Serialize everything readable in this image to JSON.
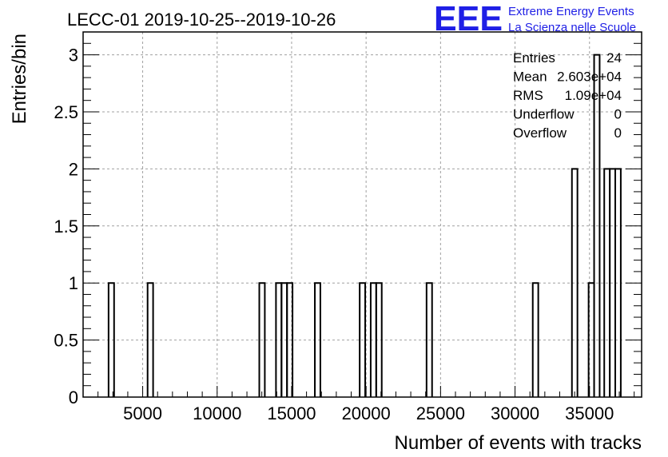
{
  "chart_data": {
    "type": "bar",
    "title": "LECC-01 2019-10-25--2019-10-26",
    "xlabel": "Number of events with tracks",
    "ylabel": "Entries/bin",
    "xlim": [
      1000,
      38500
    ],
    "ylim": [
      0,
      3.2
    ],
    "grid": true,
    "x_ticks": [
      5000,
      10000,
      15000,
      20000,
      25000,
      30000,
      35000
    ],
    "x_tick_labels": [
      "5000",
      "10000",
      "15000",
      "20000",
      "25000",
      "30000",
      "35000"
    ],
    "y_ticks": [
      0,
      0.5,
      1,
      1.5,
      2,
      2.5,
      3
    ],
    "y_tick_labels": [
      "0",
      "0.5",
      "1",
      "1.5",
      "2",
      "2.5",
      "3"
    ],
    "bins": [
      {
        "lo": 2710,
        "hi": 3080,
        "value": 1
      },
      {
        "lo": 5330,
        "hi": 5700,
        "value": 1
      },
      {
        "lo": 12830,
        "hi": 13200,
        "value": 1
      },
      {
        "lo": 13950,
        "hi": 14320,
        "value": 1
      },
      {
        "lo": 14320,
        "hi": 14690,
        "value": 1
      },
      {
        "lo": 14690,
        "hi": 15060,
        "value": 1
      },
      {
        "lo": 16560,
        "hi": 16930,
        "value": 1
      },
      {
        "lo": 19570,
        "hi": 19940,
        "value": 1
      },
      {
        "lo": 20310,
        "hi": 20680,
        "value": 1
      },
      {
        "lo": 20680,
        "hi": 21050,
        "value": 1
      },
      {
        "lo": 24060,
        "hi": 24430,
        "value": 1
      },
      {
        "lo": 31190,
        "hi": 31560,
        "value": 1
      },
      {
        "lo": 33820,
        "hi": 34190,
        "value": 2
      },
      {
        "lo": 34940,
        "hi": 35310,
        "value": 1
      },
      {
        "lo": 35310,
        "hi": 35680,
        "value": 3
      },
      {
        "lo": 35990,
        "hi": 36360,
        "value": 2
      },
      {
        "lo": 36360,
        "hi": 36730,
        "value": 2
      },
      {
        "lo": 36730,
        "hi": 37100,
        "value": 2
      }
    ],
    "stats": {
      "position": "top-right",
      "rows": [
        {
          "label": "Entries",
          "value": "24"
        },
        {
          "label": "Mean",
          "value": "2.603e+04"
        },
        {
          "label": "RMS",
          "value": "1.09e+04"
        },
        {
          "label": "Underflow",
          "value": "0"
        },
        {
          "label": "Overflow",
          "value": "0"
        }
      ]
    },
    "logo": {
      "mark": "EEE",
      "line1": "Extreme Energy Events",
      "line2": "La Scienza nelle Scuole",
      "color": "#1f1fe6"
    },
    "colors": {
      "line": "#000000",
      "grid": "#a0a0a0",
      "background": "#ffffff"
    }
  }
}
